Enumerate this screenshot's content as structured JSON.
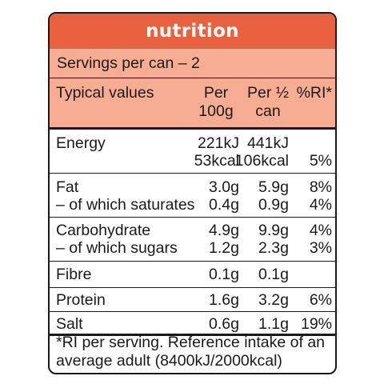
{
  "title": "nutrition",
  "servings": "Servings per can – 2",
  "header": {
    "label": "Typical values",
    "per100_line1": "Per",
    "per100_line2": "100g",
    "perhalf_line1": "Per ½",
    "perhalf_line2": "can",
    "ri": "%RI*"
  },
  "rows": [
    {
      "label": "Energy",
      "per100": "221kJ",
      "perhalf": "441kJ",
      "ri": ""
    },
    {
      "label": "",
      "per100": "53kcal",
      "perhalf": "106kcal",
      "ri": "5%"
    },
    {
      "label": "Fat",
      "per100": "3.0g",
      "perhalf": "5.9g",
      "ri": "8%"
    },
    {
      "label": "– of which saturates",
      "per100": "0.4g",
      "perhalf": "0.9g",
      "ri": "4%"
    },
    {
      "label": "Carbohydrate",
      "per100": "4.9g",
      "perhalf": "9.9g",
      "ri": "4%"
    },
    {
      "label": "– of which sugars",
      "per100": "1.2g",
      "perhalf": "2.3g",
      "ri": "3%"
    },
    {
      "label": "Fibre",
      "per100": "0.1g",
      "perhalf": "0.1g",
      "ri": ""
    },
    {
      "label": "Protein",
      "per100": "1.6g",
      "perhalf": "3.2g",
      "ri": "6%"
    },
    {
      "label": "Salt",
      "per100": "0.6g",
      "perhalf": "1.1g",
      "ri": "19%"
    }
  ],
  "footnote_line1": "*RI per serving. Reference intake of an",
  "footnote_line2": "average adult (8400kJ/2000kcal)",
  "colors": {
    "title_bg": "#e9613f",
    "header_bg": "#f7ad92",
    "border": "#1a1a1a"
  }
}
